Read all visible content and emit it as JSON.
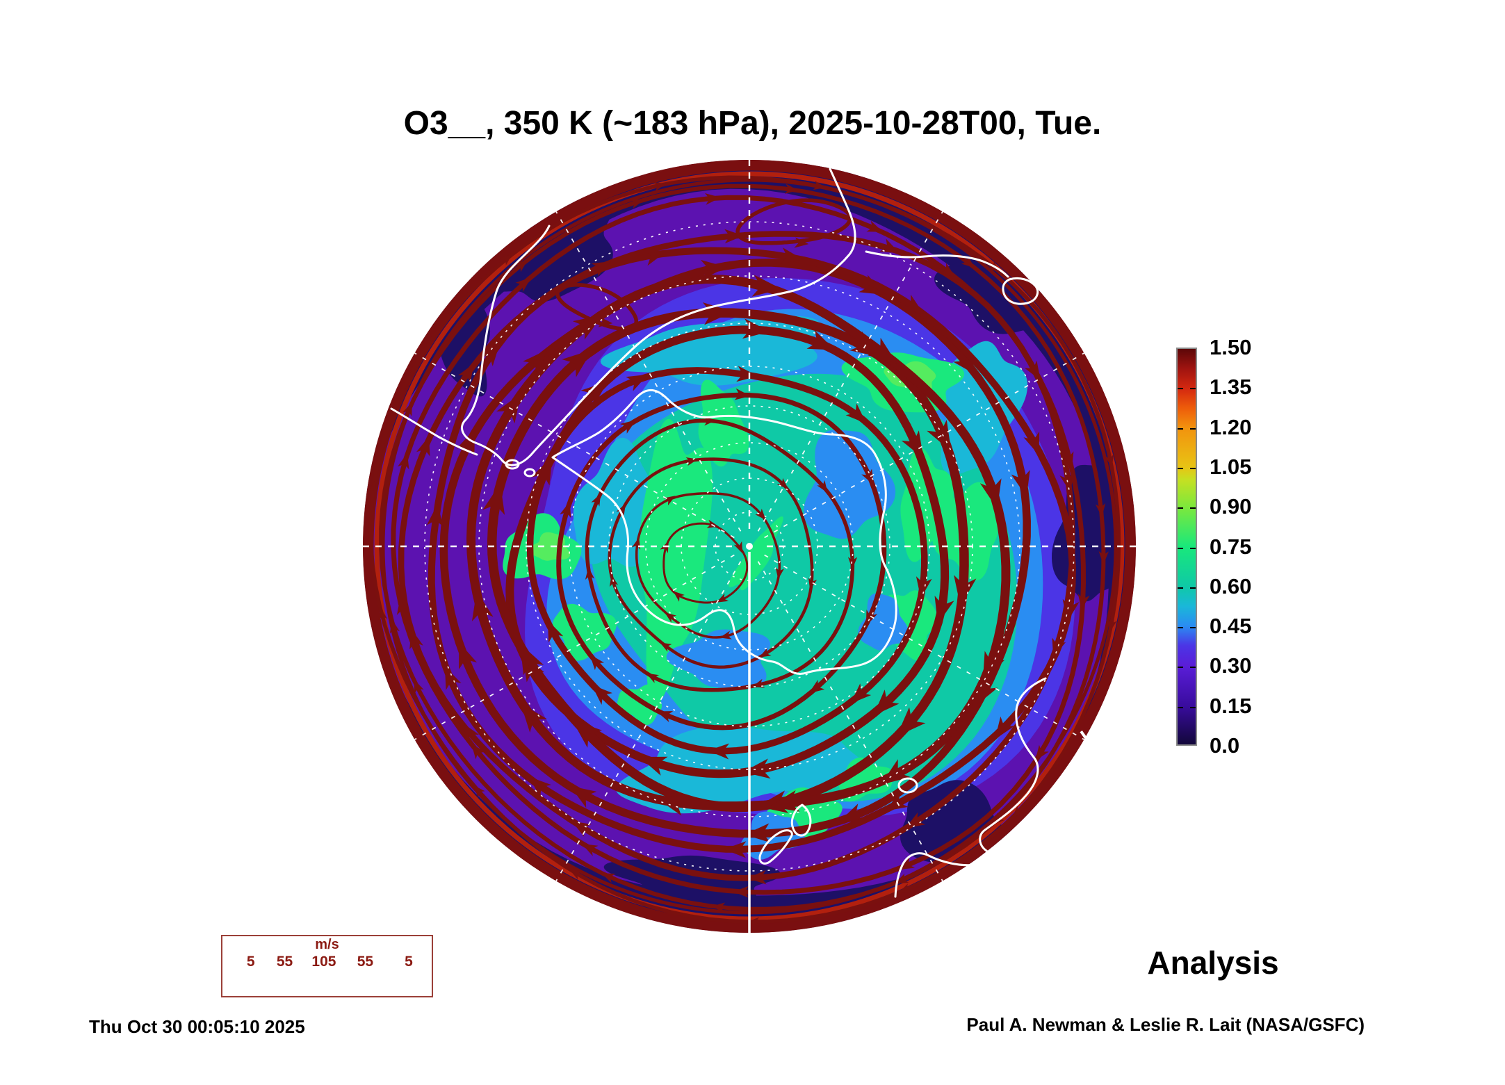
{
  "title": "O3__, 350 K (~183 hPa), 2025-10-28T00, Tue.",
  "analysis_label": "Analysis",
  "timestamp": "Thu Oct 30 00:05:10 2025",
  "credit": "Paul A. Newman & Leslie R. Lait (NASA/GSFC)",
  "wind_legend": {
    "units": "m/s",
    "values": [
      "5",
      "55",
      "105",
      "55",
      "5"
    ]
  },
  "colorbar": {
    "ticks": [
      "1.50",
      "1.35",
      "1.20",
      "1.05",
      "0.90",
      "0.75",
      "0.60",
      "0.45",
      "0.30",
      "0.15",
      "0.0"
    ],
    "gradient_stops": [
      {
        "p": 0.0,
        "c": "#12073a"
      },
      {
        "p": 0.1,
        "c": "#3a0ca0"
      },
      {
        "p": 0.2,
        "c": "#5a1ed8"
      },
      {
        "p": 0.25,
        "c": "#4b35e6"
      },
      {
        "p": 0.3,
        "c": "#2a8df2"
      },
      {
        "p": 0.35,
        "c": "#1ab8d8"
      },
      {
        "p": 0.4,
        "c": "#0fc9a6"
      },
      {
        "p": 0.5,
        "c": "#19e87b"
      },
      {
        "p": 0.6,
        "c": "#7de83c"
      },
      {
        "p": 0.67,
        "c": "#c6e022"
      },
      {
        "p": 0.7,
        "c": "#e8c414"
      },
      {
        "p": 0.8,
        "c": "#f2930e"
      },
      {
        "p": 0.85,
        "c": "#ee5d0a"
      },
      {
        "p": 0.9,
        "c": "#d42810"
      },
      {
        "p": 0.95,
        "c": "#a01410"
      },
      {
        "p": 1.0,
        "c": "#5c0708"
      }
    ]
  },
  "colors": {
    "background": "#ffffff",
    "text": "#000000",
    "streamline": "#7a100f",
    "rim": "#7a0f10",
    "rim_inner": "#b2200e",
    "coastline": "#ffffff",
    "graticule": "#ffffff",
    "legend_border": "#9b4038",
    "legend_text": "#8b1a12",
    "fill_navy": "#1d1066",
    "fill_violet": "#5c12b0",
    "fill_blueviolet": "#4b35e6",
    "fill_blue": "#2a8df2",
    "fill_cyan": "#1ab8d8",
    "fill_teal": "#0fc9a6",
    "fill_green": "#1ae87d",
    "fill_green_bright": "#55ec5f"
  },
  "chart_data": {
    "type": "map",
    "projection": "south polar stereographic (Antarctica centered)",
    "field": "O3 (ozone) filled contours with wind streamlines",
    "level": "350 K (~183 hPa)",
    "valid_time": "2025-10-28T00",
    "weekday": "Tue",
    "colorbar": {
      "min": 0.0,
      "max": 1.5,
      "tick_step": 0.15,
      "tick_values": [
        0.0,
        0.15,
        0.3,
        0.45,
        0.6,
        0.75,
        0.9,
        1.05,
        1.2,
        1.35,
        1.5
      ]
    },
    "wind_speed_scale_ms": [
      5,
      55,
      105,
      55,
      5
    ],
    "flow_direction": "clockwise circumpolar westerly jet; streamline thickness scales with speed",
    "field_pattern": "low values 0.0-0.3 (navy/violet) in midlatitude ring near map edge, 0.45-0.75 (blue/teal/green) over the pole and Antarctica, 1.35-1.50 (dark red) at the equatorward rim",
    "annotations": [
      "Analysis"
    ],
    "grid": "white dashed graticule: latitude circles every 10 deg, meridians every 30 deg",
    "coastlines": [
      "Antarctica",
      "South America",
      "Australia",
      "New Zealand",
      "Madagascar"
    ]
  }
}
